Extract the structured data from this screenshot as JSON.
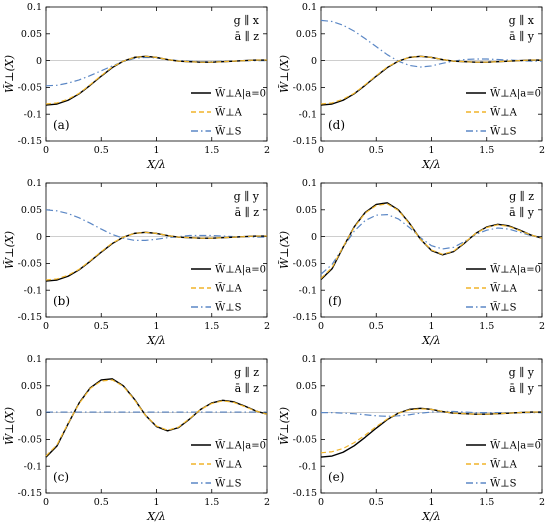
{
  "figure": {
    "xlabel": "X/λ",
    "ylabel": "W̃⊥(X)",
    "ylim": [
      -0.15,
      0.1
    ],
    "xlim": [
      0,
      2
    ],
    "xticks": [
      "0",
      "0.5",
      "1",
      "1.5",
      "2"
    ],
    "yticks": [
      "0.1",
      "0.05",
      "0",
      "-0.05",
      "-0.1",
      "-0.15"
    ],
    "legend": [
      {
        "key": "exact",
        "label": "W̃⊥A|a=0",
        "color": "#000000",
        "dash": "solid"
      },
      {
        "key": "A",
        "label": "W̃⊥A",
        "color": "#f0b429",
        "dash": "dashed"
      },
      {
        "key": "S",
        "label": "W̃⊥S",
        "color": "#5b87c5",
        "dash": "dashdot"
      }
    ]
  },
  "chart_data": [
    {
      "type": "line",
      "panel": "(a)",
      "orient_g": "g ∥ x",
      "orient_a": "ā ∥ z",
      "x": [
        0,
        0.1,
        0.2,
        0.3,
        0.4,
        0.5,
        0.6,
        0.7,
        0.8,
        0.9,
        1.0,
        1.1,
        1.2,
        1.3,
        1.4,
        1.5,
        1.6,
        1.7,
        1.8,
        1.9,
        2.0
      ],
      "series": [
        {
          "key": "exact",
          "values": [
            -0.083,
            -0.081,
            -0.074,
            -0.062,
            -0.046,
            -0.029,
            -0.013,
            -0.001,
            0.006,
            0.008,
            0.006,
            0.002,
            -0.001,
            -0.002,
            -0.003,
            -0.003,
            -0.002,
            -0.001,
            0.0,
            0.001,
            0.001
          ]
        },
        {
          "key": "A",
          "values": [
            -0.081,
            -0.079,
            -0.072,
            -0.061,
            -0.045,
            -0.028,
            -0.012,
            -0.001,
            0.006,
            0.008,
            0.006,
            0.002,
            -0.001,
            -0.002,
            -0.003,
            -0.003,
            -0.002,
            -0.001,
            0.0,
            0.001,
            0.001
          ]
        },
        {
          "key": "S",
          "values": [
            -0.047,
            -0.046,
            -0.042,
            -0.036,
            -0.028,
            -0.019,
            -0.01,
            -0.002,
            0.004,
            0.006,
            0.005,
            0.002,
            0.0,
            -0.001,
            -0.002,
            -0.002,
            -0.001,
            -0.001,
            0.0,
            0.0,
            0.0
          ]
        }
      ]
    },
    {
      "type": "line",
      "panel": "(d)",
      "orient_g": "g ∥ x",
      "orient_a": "ā ∥ y",
      "x": [
        0,
        0.1,
        0.2,
        0.3,
        0.4,
        0.5,
        0.6,
        0.7,
        0.8,
        0.9,
        1.0,
        1.1,
        1.2,
        1.3,
        1.4,
        1.5,
        1.6,
        1.7,
        1.8,
        1.9,
        2.0
      ],
      "series": [
        {
          "key": "exact",
          "values": [
            -0.083,
            -0.081,
            -0.074,
            -0.062,
            -0.046,
            -0.029,
            -0.013,
            -0.001,
            0.006,
            0.008,
            0.006,
            0.002,
            -0.001,
            -0.002,
            -0.003,
            -0.003,
            -0.002,
            -0.001,
            0.0,
            0.001,
            0.001
          ]
        },
        {
          "key": "A",
          "values": [
            -0.081,
            -0.079,
            -0.072,
            -0.061,
            -0.045,
            -0.028,
            -0.012,
            -0.001,
            0.006,
            0.008,
            0.006,
            0.002,
            -0.001,
            -0.002,
            -0.003,
            -0.003,
            -0.002,
            -0.001,
            0.0,
            0.001,
            0.001
          ]
        },
        {
          "key": "S",
          "values": [
            0.075,
            0.073,
            0.066,
            0.055,
            0.041,
            0.026,
            0.011,
            -0.001,
            -0.009,
            -0.012,
            -0.01,
            -0.005,
            -0.001,
            0.002,
            0.003,
            0.003,
            0.002,
            0.001,
            0.0,
            -0.001,
            -0.001
          ]
        }
      ]
    },
    {
      "type": "line",
      "panel": "(b)",
      "orient_g": "g ∥ y",
      "orient_a": "ā ∥ z",
      "x": [
        0,
        0.1,
        0.2,
        0.3,
        0.4,
        0.5,
        0.6,
        0.7,
        0.8,
        0.9,
        1.0,
        1.1,
        1.2,
        1.3,
        1.4,
        1.5,
        1.6,
        1.7,
        1.8,
        1.9,
        2.0
      ],
      "series": [
        {
          "key": "exact",
          "values": [
            -0.083,
            -0.081,
            -0.074,
            -0.062,
            -0.046,
            -0.029,
            -0.013,
            -0.001,
            0.006,
            0.008,
            0.006,
            0.002,
            -0.001,
            -0.002,
            -0.003,
            -0.003,
            -0.002,
            -0.001,
            0.0,
            0.001,
            0.001
          ]
        },
        {
          "key": "A",
          "values": [
            -0.081,
            -0.079,
            -0.072,
            -0.061,
            -0.045,
            -0.028,
            -0.012,
            -0.001,
            0.006,
            0.008,
            0.006,
            0.002,
            -0.001,
            -0.002,
            -0.003,
            -0.003,
            -0.002,
            -0.001,
            0.0,
            0.001,
            0.001
          ]
        },
        {
          "key": "S",
          "values": [
            0.05,
            0.048,
            0.043,
            0.035,
            0.025,
            0.014,
            0.004,
            -0.003,
            -0.007,
            -0.007,
            -0.005,
            -0.002,
            0.0,
            0.002,
            0.002,
            0.002,
            0.001,
            0.0,
            0.0,
            -0.001,
            -0.001
          ]
        }
      ]
    },
    {
      "type": "line",
      "panel": "(f)",
      "orient_g": "g ∥ z",
      "orient_a": "ā ∥ y",
      "x": [
        0,
        0.1,
        0.2,
        0.3,
        0.4,
        0.5,
        0.6,
        0.7,
        0.8,
        0.9,
        1.0,
        1.1,
        1.2,
        1.3,
        1.4,
        1.5,
        1.6,
        1.7,
        1.8,
        1.9,
        2.0
      ],
      "series": [
        {
          "key": "exact",
          "values": [
            -0.08,
            -0.06,
            -0.02,
            0.018,
            0.045,
            0.06,
            0.063,
            0.05,
            0.025,
            -0.005,
            -0.026,
            -0.034,
            -0.028,
            -0.012,
            0.006,
            0.018,
            0.023,
            0.02,
            0.012,
            0.003,
            -0.003
          ]
        },
        {
          "key": "A",
          "values": [
            -0.078,
            -0.058,
            -0.019,
            0.017,
            0.044,
            0.058,
            0.061,
            0.049,
            0.024,
            -0.005,
            -0.025,
            -0.033,
            -0.027,
            -0.011,
            0.006,
            0.017,
            0.022,
            0.019,
            0.011,
            0.003,
            -0.003
          ]
        },
        {
          "key": "S",
          "values": [
            -0.07,
            -0.052,
            -0.02,
            0.01,
            0.03,
            0.04,
            0.041,
            0.033,
            0.017,
            -0.002,
            -0.017,
            -0.023,
            -0.02,
            -0.009,
            0.004,
            0.012,
            0.016,
            0.014,
            0.008,
            0.002,
            -0.002
          ]
        }
      ]
    },
    {
      "type": "line",
      "panel": "(c)",
      "orient_g": "g ∥ z",
      "orient_a": "ā ∥ z",
      "x": [
        0,
        0.1,
        0.2,
        0.3,
        0.4,
        0.5,
        0.6,
        0.7,
        0.8,
        0.9,
        1.0,
        1.1,
        1.2,
        1.3,
        1.4,
        1.5,
        1.6,
        1.7,
        1.8,
        1.9,
        2.0
      ],
      "series": [
        {
          "key": "exact",
          "values": [
            -0.083,
            -0.062,
            -0.021,
            0.018,
            0.046,
            0.061,
            0.063,
            0.05,
            0.025,
            -0.005,
            -0.026,
            -0.034,
            -0.028,
            -0.012,
            0.006,
            0.018,
            0.023,
            0.02,
            0.012,
            0.003,
            -0.003
          ]
        },
        {
          "key": "A",
          "values": [
            -0.081,
            -0.06,
            -0.02,
            0.017,
            0.045,
            0.059,
            0.061,
            0.049,
            0.024,
            -0.005,
            -0.025,
            -0.033,
            -0.027,
            -0.011,
            0.006,
            0.017,
            0.022,
            0.019,
            0.011,
            0.003,
            -0.003
          ]
        },
        {
          "key": "S",
          "values": [
            0.001,
            0.001,
            0.001,
            0.001,
            0.001,
            0.001,
            0.001,
            0.001,
            0.001,
            0.001,
            0.001,
            0.001,
            0.001,
            0.001,
            0.001,
            0.001,
            0.001,
            0.001,
            0.001,
            0.001,
            0.001
          ]
        }
      ]
    },
    {
      "type": "line",
      "panel": "(e)",
      "orient_g": "g ∥ y",
      "orient_a": "ā ∥ y",
      "x": [
        0,
        0.1,
        0.2,
        0.3,
        0.4,
        0.5,
        0.6,
        0.7,
        0.8,
        0.9,
        1.0,
        1.1,
        1.2,
        1.3,
        1.4,
        1.5,
        1.6,
        1.7,
        1.8,
        1.9,
        2.0
      ],
      "series": [
        {
          "key": "exact",
          "values": [
            -0.083,
            -0.081,
            -0.074,
            -0.062,
            -0.046,
            -0.029,
            -0.013,
            -0.001,
            0.006,
            0.008,
            0.006,
            0.002,
            -0.001,
            -0.002,
            -0.003,
            -0.003,
            -0.002,
            -0.001,
            0.0,
            0.001,
            0.001
          ]
        },
        {
          "key": "A",
          "values": [
            -0.075,
            -0.073,
            -0.067,
            -0.056,
            -0.042,
            -0.026,
            -0.012,
            -0.001,
            0.005,
            0.007,
            0.006,
            0.002,
            -0.001,
            -0.002,
            -0.003,
            -0.003,
            -0.002,
            -0.001,
            0.0,
            0.001,
            0.001
          ]
        },
        {
          "key": "S",
          "values": [
            0.0,
            0.0,
            -0.001,
            -0.002,
            -0.004,
            -0.006,
            -0.007,
            -0.006,
            -0.004,
            -0.001,
            0.001,
            0.002,
            0.002,
            0.001,
            0.0,
            0.0,
            0.0,
            0.0,
            0.0,
            0.0,
            0.0
          ]
        }
      ]
    }
  ]
}
